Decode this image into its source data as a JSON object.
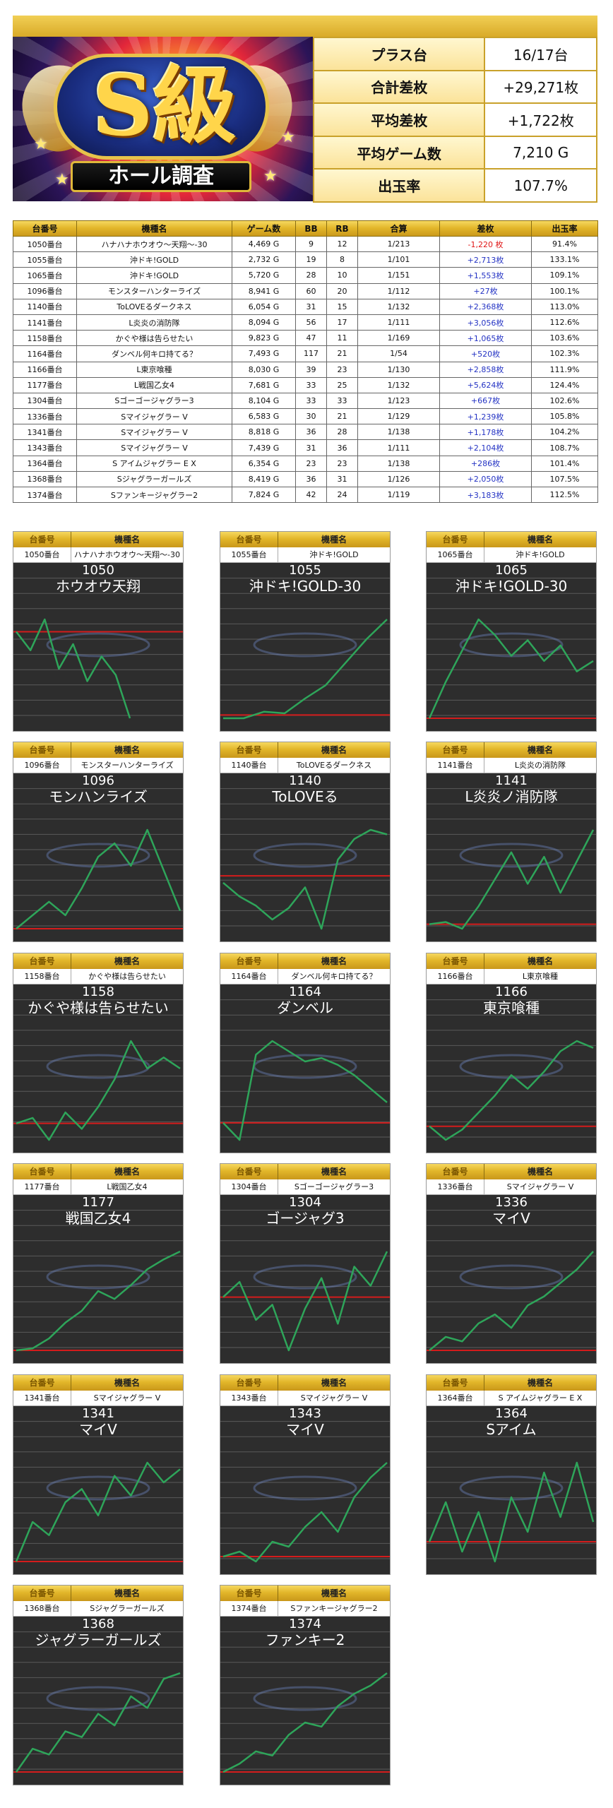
{
  "banner": {
    "grade": "S級",
    "subtitle": "ホール調査"
  },
  "summary": [
    {
      "label": "プラス台",
      "value": "16/17台"
    },
    {
      "label": "合計差枚",
      "value": "+29,271枚"
    },
    {
      "label": "平均差枚",
      "value": "+1,722枚"
    },
    {
      "label": "平均ゲーム数",
      "value": "7,210 G"
    },
    {
      "label": "出玉率",
      "value": "107.7%"
    }
  ],
  "table_headers": [
    "台番号",
    "機種名",
    "ゲーム数",
    "BB",
    "RB",
    "合算",
    "差枚",
    "出玉率"
  ],
  "rows": [
    [
      "1050番台",
      "ハナハナホウオウ～天翔～-30",
      "4,469 G",
      "9",
      "12",
      "1/213",
      "-1,220 枚",
      "91.4%"
    ],
    [
      "1055番台",
      "沖ドキ!GOLD",
      "2,732 G",
      "19",
      "8",
      "1/101",
      "+2,713枚",
      "133.1%"
    ],
    [
      "1065番台",
      "沖ドキ!GOLD",
      "5,720 G",
      "28",
      "10",
      "1/151",
      "+1,553枚",
      "109.1%"
    ],
    [
      "1096番台",
      "モンスターハンターライズ",
      "8,941 G",
      "60",
      "20",
      "1/112",
      "+27枚",
      "100.1%"
    ],
    [
      "1140番台",
      "ToLOVEるダークネス",
      "6,054 G",
      "31",
      "15",
      "1/132",
      "+2,368枚",
      "113.0%"
    ],
    [
      "1141番台",
      "L炎炎の消防隊",
      "8,094 G",
      "56",
      "17",
      "1/111",
      "+3,056枚",
      "112.6%"
    ],
    [
      "1158番台",
      "かぐや様は告らせたい",
      "9,823 G",
      "47",
      "11",
      "1/169",
      "+1,065枚",
      "103.6%"
    ],
    [
      "1164番台",
      "ダンベル何キロ持てる？",
      "7,493 G",
      "117",
      "21",
      "1/54",
      "+520枚",
      "102.3%"
    ],
    [
      "1166番台",
      "L東京喰種",
      "8,030 G",
      "39",
      "23",
      "1/130",
      "+2,858枚",
      "111.9%"
    ],
    [
      "1177番台",
      "L戦国乙女4",
      "7,681 G",
      "33",
      "25",
      "1/132",
      "+5,624枚",
      "124.4%"
    ],
    [
      "1304番台",
      "Sゴーゴージャグラー3",
      "8,104 G",
      "33",
      "33",
      "1/123",
      "+667枚",
      "102.6%"
    ],
    [
      "1336番台",
      "Sマイジャグラー V",
      "6,583 G",
      "30",
      "21",
      "1/129",
      "+1,239枚",
      "105.8%"
    ],
    [
      "1341番台",
      "Sマイジャグラー V",
      "8,818 G",
      "36",
      "28",
      "1/138",
      "+1,178枚",
      "104.2%"
    ],
    [
      "1343番台",
      "Sマイジャグラー V",
      "7,439 G",
      "31",
      "36",
      "1/111",
      "+2,104枚",
      "108.7%"
    ],
    [
      "1364番台",
      "S アイムジャグラー E X",
      "6,354 G",
      "23",
      "23",
      "1/138",
      "+286枚",
      "101.4%"
    ],
    [
      "1368番台",
      "Sジャグラーガールズ",
      "8,419 G",
      "36",
      "31",
      "1/126",
      "+2,050枚",
      "107.5%"
    ],
    [
      "1374番台",
      "Sファンキージャグラー2",
      "7,824 G",
      "42",
      "24",
      "1/119",
      "+3,183枚",
      "112.5%"
    ]
  ],
  "card_headers": {
    "number": "台番号",
    "model": "機種名"
  },
  "cards": [
    {
      "machine": "1050番台",
      "model": "ハナハナホウオウ～天翔～-30",
      "num": "1050",
      "name": "ホウオウ天翔",
      "trend": [
        0,
        -0.3,
        0.2,
        -0.6,
        -0.2,
        -0.8,
        -0.4,
        -0.7,
        -1.4
      ]
    },
    {
      "machine": "1055番台",
      "model": "沖ドキ!GOLD",
      "num": "1055",
      "name": "沖ドキ!GOLD-30",
      "trend": [
        -0.1,
        -0.1,
        0.1,
        0.05,
        0.5,
        0.9,
        1.6,
        2.3,
        2.9
      ]
    },
    {
      "machine": "1065番台",
      "model": "沖ドキ!GOLD",
      "num": "1065",
      "name": "沖ドキ!GOLD-30",
      "trend": [
        0,
        0.7,
        1.3,
        1.9,
        1.6,
        1.2,
        1.5,
        1.1,
        1.4,
        0.9,
        1.1
      ]
    },
    {
      "machine": "1096番台",
      "model": "モンスターハンターライズ",
      "num": "1096",
      "name": "モンハンライズ",
      "trend": [
        0,
        0.3,
        0.6,
        0.3,
        0.9,
        1.6,
        1.9,
        1.4,
        2.2,
        1.3,
        0.4
      ]
    },
    {
      "machine": "1140番台",
      "model": "ToLOVEるダークネス",
      "num": "1140",
      "name": "ToLOVEる",
      "trend": [
        -0.3,
        -0.9,
        -1.3,
        -1.9,
        -1.4,
        -0.5,
        -2.3,
        0.7,
        1.6,
        2.0,
        1.8
      ]
    },
    {
      "machine": "1141番台",
      "model": "L炎炎の消防隊",
      "num": "1141",
      "name": "L炎炎ノ消防隊",
      "trend": [
        0,
        0.05,
        -0.1,
        0.4,
        1.0,
        1.6,
        0.9,
        1.5,
        0.7,
        1.4,
        2.1
      ]
    },
    {
      "machine": "1158番台",
      "model": "かぐや様は告らせたい",
      "num": "1158",
      "name": "かぐや様は告らせたい",
      "trend": [
        0,
        0.1,
        -0.3,
        0.2,
        -0.1,
        0.3,
        0.8,
        1.5,
        1.0,
        1.2,
        1.0
      ]
    },
    {
      "machine": "1164番台",
      "model": "ダンベル何キロ持てる？",
      "num": "1164",
      "name": "ダンベル",
      "trend": [
        0,
        -0.5,
        2.0,
        2.4,
        2.1,
        1.8,
        1.9,
        1.7,
        1.4,
        1.0,
        0.6
      ]
    },
    {
      "machine": "1166番台",
      "model": "L東京喰種",
      "num": "1166",
      "name": "東京喰種",
      "trend": [
        0,
        -0.4,
        -0.1,
        0.4,
        0.9,
        1.5,
        1.1,
        1.6,
        2.2,
        2.5,
        2.3
      ]
    },
    {
      "machine": "1177番台",
      "model": "L戦国乙女4",
      "num": "1177",
      "name": "戦国乙女4",
      "trend": [
        0,
        0.1,
        0.6,
        1.4,
        2.0,
        3.0,
        2.6,
        3.3,
        4.1,
        4.6,
        5.0
      ]
    },
    {
      "machine": "1304番台",
      "model": "Sゴーゴージャグラー3",
      "num": "1304",
      "name": "ゴージャグ3",
      "trend": [
        0,
        0.4,
        -0.6,
        -0.2,
        -1.4,
        -0.3,
        0.5,
        -0.7,
        0.8,
        0.3,
        1.2
      ]
    },
    {
      "machine": "1336番台",
      "model": "Sマイジャグラー V",
      "num": "1336",
      "name": "マイV",
      "trend": [
        0,
        0.3,
        0.2,
        0.6,
        0.8,
        0.5,
        1.0,
        1.2,
        1.5,
        1.8,
        2.2
      ]
    },
    {
      "machine": "1341番台",
      "model": "Sマイジャグラー V",
      "num": "1341",
      "name": "マイV",
      "trend": [
        0,
        0.6,
        0.4,
        0.9,
        1.1,
        0.7,
        1.3,
        1.0,
        1.5,
        1.2,
        1.4
      ]
    },
    {
      "machine": "1343番台",
      "model": "Sマイジャグラー V",
      "num": "1343",
      "name": "マイV",
      "trend": [
        0,
        0.1,
        -0.1,
        0.3,
        0.2,
        0.6,
        0.9,
        0.5,
        1.2,
        1.6,
        1.9
      ]
    },
    {
      "machine": "1364番台",
      "model": "S アイムジャグラー E X",
      "num": "1364",
      "name": "Sアイム",
      "trend": [
        0,
        0.8,
        -0.2,
        0.6,
        -0.4,
        0.9,
        0.2,
        1.4,
        0.5,
        1.6,
        0.4
      ]
    },
    {
      "machine": "1368番台",
      "model": "Sジャグラーガールズ",
      "num": "1368",
      "name": "ジャグラーガールズ",
      "trend": [
        0,
        0.4,
        0.3,
        0.7,
        0.6,
        1.0,
        0.8,
        1.3,
        1.1,
        1.6,
        1.7
      ]
    },
    {
      "machine": "1374番台",
      "model": "Sファンキージャグラー2",
      "num": "1374",
      "name": "ファンキー2",
      "trend": [
        0,
        0.2,
        0.5,
        0.4,
        0.9,
        1.2,
        1.1,
        1.6,
        1.9,
        2.1,
        2.4
      ]
    }
  ],
  "colors": {
    "gold": "#e2b62a",
    "plus": "#2433c4",
    "minus": "#e01616",
    "line": "#2ea55a",
    "zero_line": "#d41c1c",
    "chart_bg": "#2d2d2d"
  }
}
